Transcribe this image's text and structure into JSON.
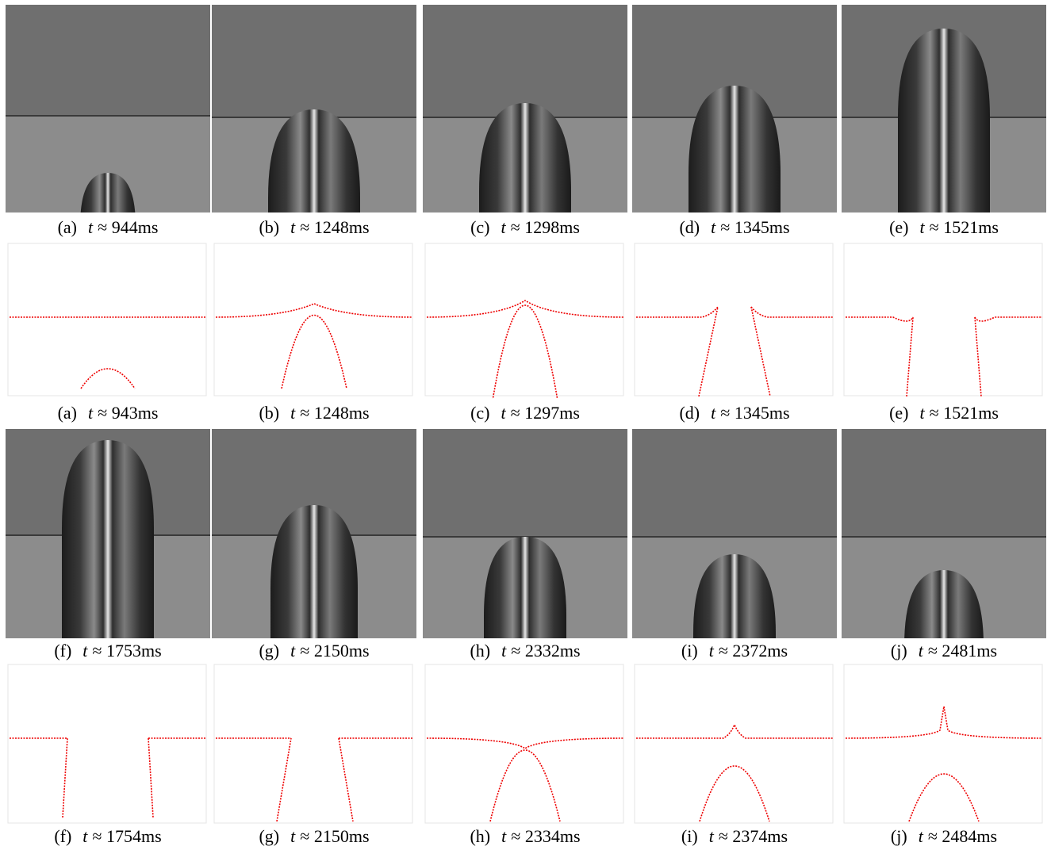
{
  "rows": [
    {
      "kind": "photo",
      "panels": [
        {
          "label": "(a)",
          "var": "t",
          "time": "≈ 944ms"
        },
        {
          "label": "(b)",
          "var": "t",
          "time": "≈ 1248ms"
        },
        {
          "label": "(c)",
          "var": "t",
          "time": "≈ 1298ms"
        },
        {
          "label": "(d)",
          "var": "t",
          "time": "≈ 1345ms"
        },
        {
          "label": "(e)",
          "var": "t",
          "time": "≈ 1521ms"
        }
      ]
    },
    {
      "kind": "simulation",
      "panels": [
        {
          "label": "(a)",
          "var": "t",
          "time": "≈ 943ms"
        },
        {
          "label": "(b)",
          "var": "t",
          "time": "≈ 1248ms"
        },
        {
          "label": "(c)",
          "var": "t",
          "time": "≈ 1297ms"
        },
        {
          "label": "(d)",
          "var": "t",
          "time": "≈ 1345ms"
        },
        {
          "label": "(e)",
          "var": "t",
          "time": "≈ 1521ms"
        }
      ]
    },
    {
      "kind": "photo",
      "panels": [
        {
          "label": "(f)",
          "var": "t",
          "time": "≈ 1753ms"
        },
        {
          "label": "(g)",
          "var": "t",
          "time": "≈ 2150ms"
        },
        {
          "label": "(h)",
          "var": "t",
          "time": "≈ 2332ms"
        },
        {
          "label": "(i)",
          "var": "t",
          "time": "≈ 2372ms"
        },
        {
          "label": "(j)",
          "var": "t",
          "time": "≈ 2481ms"
        }
      ]
    },
    {
      "kind": "simulation",
      "panels": [
        {
          "label": "(f)",
          "var": "t",
          "time": "≈ 1754ms"
        },
        {
          "label": "(g)",
          "var": "t",
          "time": "≈ 2150ms"
        },
        {
          "label": "(h)",
          "var": "t",
          "time": "≈ 2334ms"
        },
        {
          "label": "(i)",
          "var": "t",
          "time": "≈ 2374ms"
        },
        {
          "label": "(j)",
          "var": "t",
          "time": "≈ 2484ms"
        }
      ]
    }
  ]
}
